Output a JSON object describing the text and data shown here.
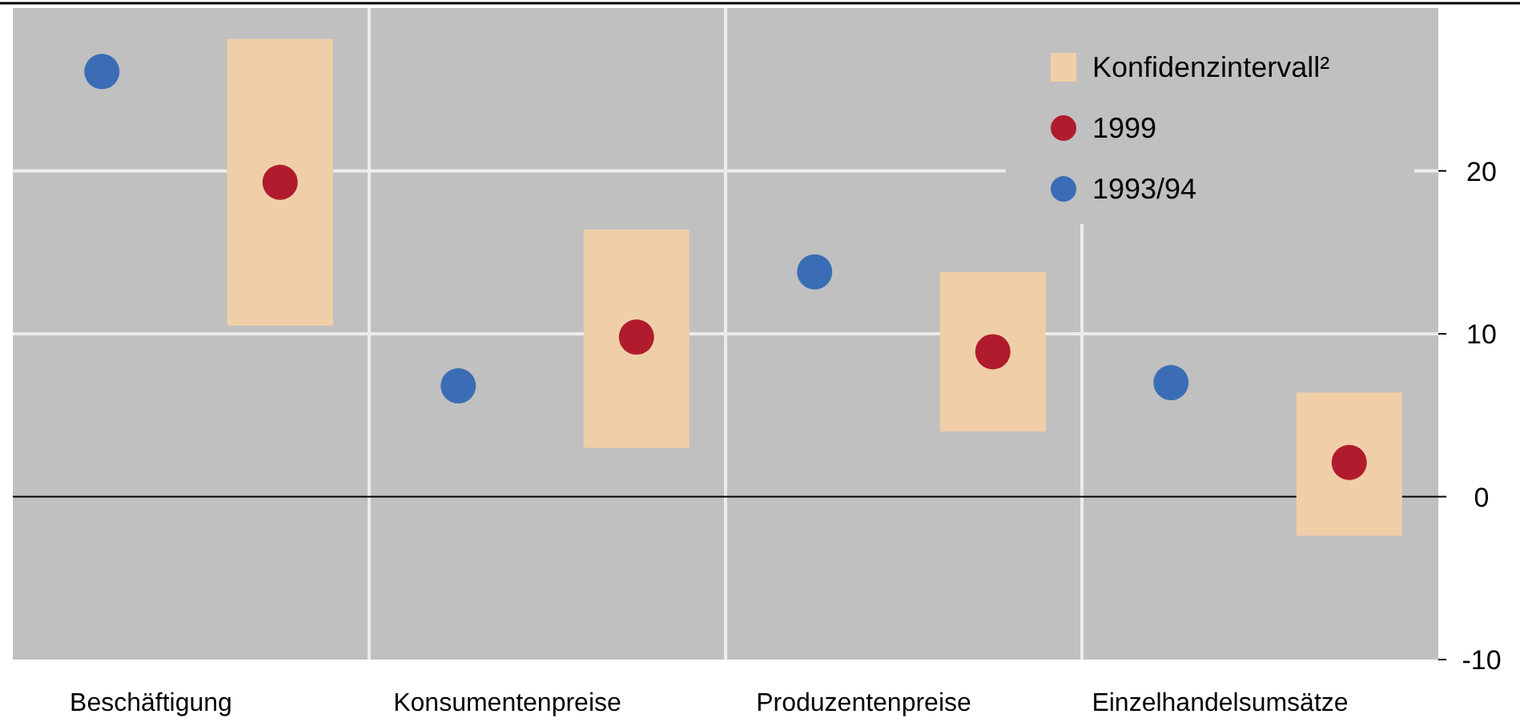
{
  "chart_data": {
    "type": "scatter",
    "categories": [
      "Beschäftigung",
      "Konsumentenpreise",
      "Produzentenpreise",
      "Einzelhandelsumsätze"
    ],
    "series": [
      {
        "name": "Konfidenzintervall²",
        "type": "bar",
        "color": "#f0cfa8",
        "base": [
          10.5,
          3.0,
          4.0,
          -2.4
        ],
        "values": [
          17.6,
          13.4,
          9.8,
          8.8
        ]
      },
      {
        "name": "1999",
        "color": "#b01c2e",
        "values": [
          19.3,
          9.8,
          8.9,
          2.1
        ]
      },
      {
        "name": "1993/94",
        "color": "#3a6db5",
        "values": [
          26.1,
          6.8,
          13.8,
          7.0
        ]
      }
    ],
    "ylim": [
      -10,
      30
    ],
    "yticks": [
      -10,
      0,
      10,
      20
    ],
    "grid": true,
    "legend": "top right",
    "marker": "circle"
  }
}
